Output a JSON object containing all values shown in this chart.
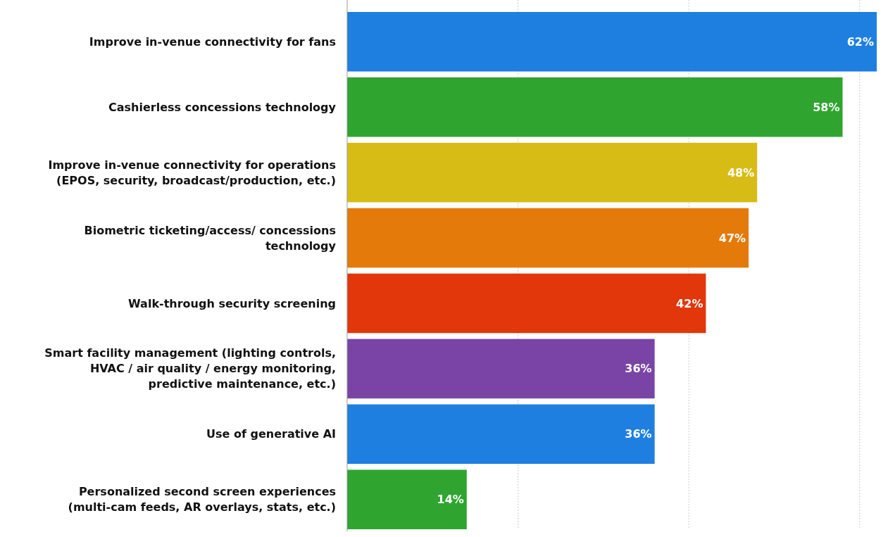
{
  "chart_data": {
    "type": "bar",
    "orientation": "horizontal",
    "categories": [
      "Improve in-venue connectivity for fans",
      "Cashierless concessions technology",
      "Improve in-venue connectivity for operations (EPOS, security, broadcast/production, etc.)",
      "Biometric ticketing/access/ concessions technology",
      "Walk-through security screening",
      "Smart facility management (lighting controls, HVAC / air quality / energy monitoring, predictive maintenance, etc.)",
      "Use of generative AI",
      "Personalized second screen experiences (multi-cam feeds, AR overlays, stats, etc.)"
    ],
    "values": [
      62,
      58,
      48,
      47,
      42,
      36,
      36,
      14
    ],
    "value_labels": [
      "62%",
      "58%",
      "48%",
      "47%",
      "42%",
      "36%",
      "36%",
      "14%"
    ],
    "colors": [
      "#1f7fe0",
      "#2fa52f",
      "#d8bc16",
      "#e47a0a",
      "#e2370b",
      "#7a44a6",
      "#1f7fe0",
      "#2fa52f"
    ],
    "xlim": [
      0,
      62
    ],
    "xticks": [
      {
        "value": 20,
        "label": null
      },
      {
        "value": 40,
        "label": null
      },
      {
        "value": 60,
        "label": null
      }
    ],
    "tick_labels": "y",
    "grid": "x"
  }
}
